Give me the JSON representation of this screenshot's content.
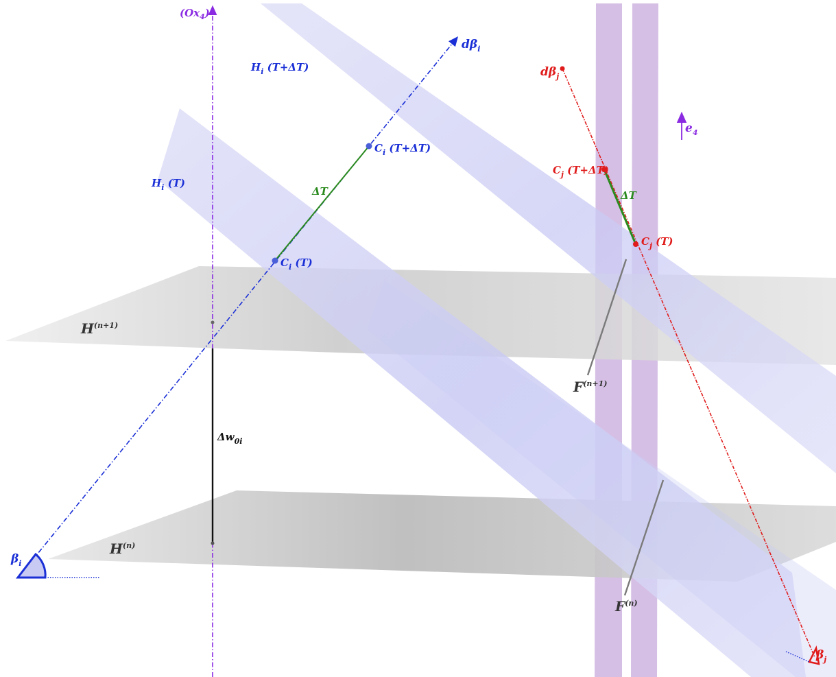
{
  "labels": {
    "axis_ox4": "(Ox",
    "axis_ox4_sub": "4",
    "axis_ox4_close": ")",
    "d_beta_i": "dβ",
    "d_beta_i_sub": "i",
    "d_beta_j": "dβ",
    "d_beta_j_sub": "j",
    "e4": "e",
    "e4_sub": "4",
    "h_i_t_dt": "H",
    "h_i_t_dt_sub": "i",
    "h_i_t_dt_arg": " (T+ΔT)",
    "h_i_t": "H",
    "h_i_t_sub": "i",
    "h_i_t_arg": " (T)",
    "c_i_t_dt": "C",
    "c_i_t_dt_sub": "i",
    "c_i_t_dt_arg": " (T+ΔT)",
    "c_i_t": "C",
    "c_i_t_sub": "i",
    "c_i_t_arg": " (T)",
    "delta_t_i": "ΔT",
    "delta_t_j": "ΔT",
    "c_j_t_dt": "C",
    "c_j_t_dt_sub": "j",
    "c_j_t_dt_arg": " (T+ΔT)",
    "c_j_t": "C",
    "c_j_t_sub": "j",
    "c_j_t_arg": " (T)",
    "h_n1": "H",
    "h_n1_sup": "(n+1)",
    "h_n": "H",
    "h_n_sup": "(n)",
    "f_n1": "F",
    "f_n1_sup": "(n+1)",
    "f_n": "F",
    "f_n_sup": "(n)",
    "delta_w": "Δw",
    "delta_w_sub": "0i",
    "beta_i": "β",
    "beta_i_sub": "i",
    "beta_j": "β",
    "beta_j_sub": "j"
  },
  "colors": {
    "axis_violet": "#8a2be2",
    "blue": "#1a2fd6",
    "red": "#e01b1b",
    "green": "#2a8a1e",
    "plane_blue": "#c7c8f3",
    "plane_gray": "#c9c9c9",
    "plane_violet": "#c8a9dc",
    "black": "#111111"
  }
}
